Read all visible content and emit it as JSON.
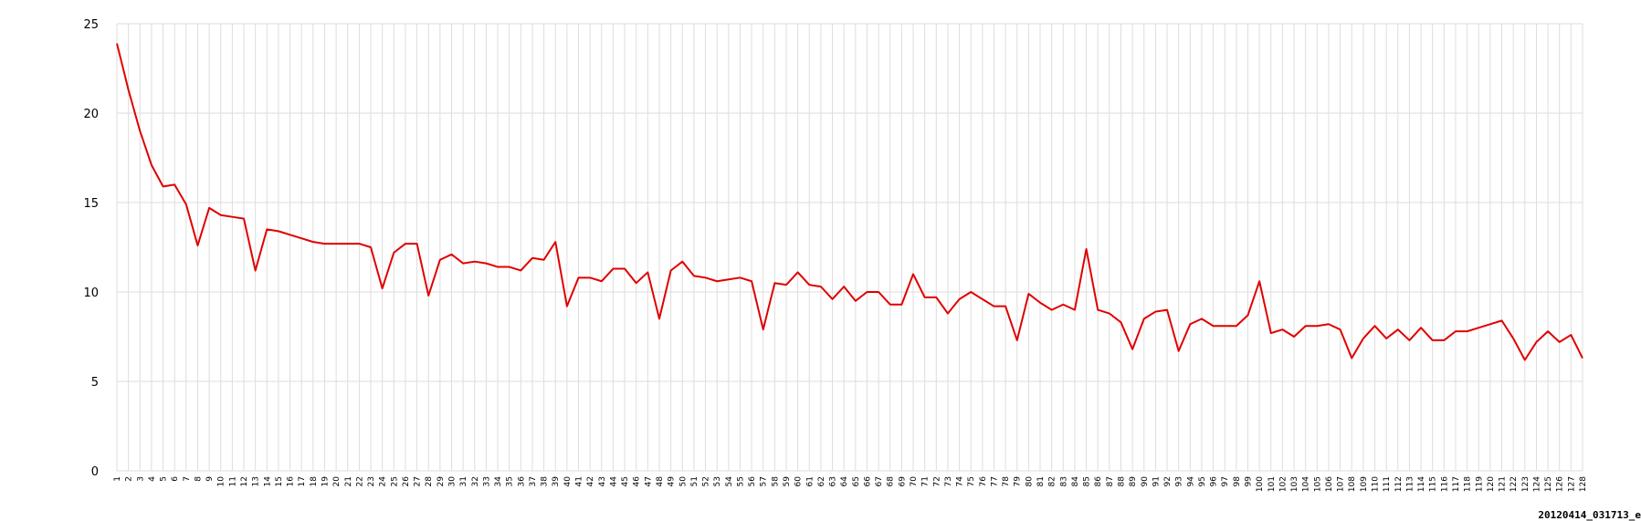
{
  "caption": "20120414_031713_e",
  "chart_data": {
    "type": "line",
    "title": "",
    "xlabel": "",
    "ylabel": "",
    "ylim": [
      0,
      25
    ],
    "yticks": [
      0,
      5,
      10,
      15,
      20,
      25
    ],
    "grid": true,
    "legend": "none",
    "series_color": "#e00000",
    "grid_color": "#dddddd",
    "x": [
      1,
      2,
      3,
      4,
      5,
      6,
      7,
      8,
      9,
      10,
      11,
      12,
      13,
      14,
      15,
      16,
      17,
      18,
      19,
      20,
      21,
      22,
      23,
      24,
      25,
      26,
      27,
      28,
      29,
      30,
      31,
      32,
      33,
      34,
      35,
      36,
      37,
      38,
      39,
      40,
      41,
      42,
      43,
      44,
      45,
      46,
      47,
      48,
      49,
      50,
      51,
      52,
      53,
      54,
      55,
      56,
      57,
      58,
      59,
      60,
      61,
      62,
      63,
      64,
      65,
      66,
      67,
      68,
      69,
      70,
      71,
      72,
      73,
      74,
      75,
      76,
      77,
      78,
      79,
      80,
      81,
      82,
      83,
      84,
      85,
      86,
      87,
      88,
      89,
      90,
      91,
      92,
      93,
      94,
      95,
      96,
      97,
      98,
      99,
      100,
      101,
      102,
      103,
      104,
      105,
      106,
      107,
      108,
      109,
      110,
      111,
      112,
      113,
      114,
      115,
      116,
      117,
      118,
      119,
      120,
      121,
      122,
      123,
      124,
      125,
      126,
      127,
      128
    ],
    "series": [
      {
        "values": [
          23.9,
          21.3,
          19.0,
          17.1,
          15.9,
          16.0,
          14.9,
          12.6,
          14.7,
          14.3,
          14.2,
          14.1,
          11.2,
          13.5,
          13.4,
          13.2,
          13.0,
          12.8,
          12.7,
          12.7,
          12.7,
          12.7,
          12.5,
          10.2,
          12.2,
          12.7,
          12.7,
          9.8,
          11.8,
          12.1,
          11.6,
          11.7,
          11.6,
          11.4,
          11.4,
          11.2,
          11.9,
          11.8,
          12.8,
          9.2,
          10.8,
          10.8,
          10.6,
          11.3,
          11.3,
          10.5,
          11.1,
          8.5,
          11.2,
          11.7,
          10.9,
          10.8,
          10.6,
          10.7,
          10.8,
          10.6,
          7.9,
          10.5,
          10.4,
          11.1,
          10.4,
          10.3,
          9.6,
          10.3,
          9.5,
          10.0,
          10.0,
          9.3,
          9.3,
          11.0,
          9.7,
          9.7,
          8.8,
          9.6,
          10.0,
          9.6,
          9.2,
          9.2,
          7.3,
          9.9,
          9.4,
          9.0,
          9.3,
          9.0,
          12.4,
          9.0,
          8.8,
          8.3,
          6.8,
          8.5,
          8.9,
          9.0,
          6.7,
          8.2,
          8.5,
          8.1,
          8.1,
          8.1,
          8.7,
          10.6,
          7.7,
          7.9,
          7.5,
          8.1,
          8.1,
          8.2,
          7.9,
          6.3,
          7.4,
          8.1,
          7.4,
          7.9,
          7.3,
          8.0,
          7.3,
          7.3,
          7.8,
          7.8,
          8.0,
          8.2,
          8.4,
          7.4,
          6.2,
          7.2,
          7.8,
          7.2,
          7.6,
          6.3
        ]
      }
    ]
  }
}
